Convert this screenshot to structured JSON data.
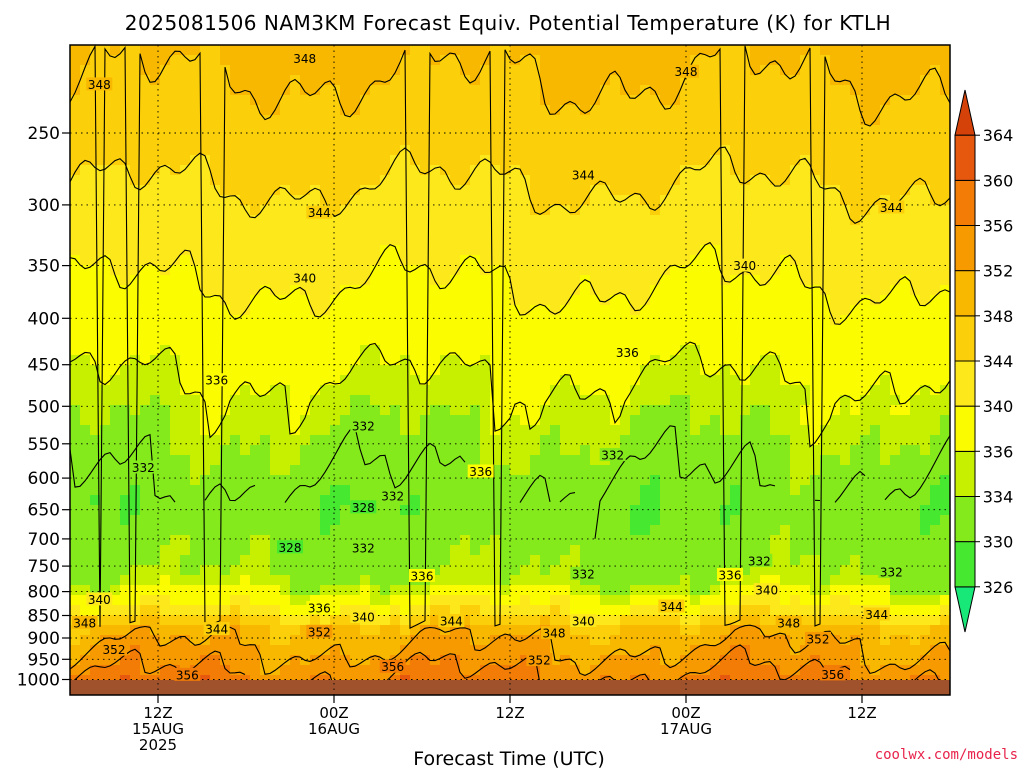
{
  "chart_data": {
    "type": "heatmap",
    "title": "2025081506 NAM3KM Forecast Equiv. Potential Temperature (K) for KTLH",
    "xlabel": "Forecast Time (UTC)",
    "ylabel": "",
    "y_axis": {
      "scale": "log-pressure",
      "tick_labels": [
        "250",
        "300",
        "350",
        "400",
        "450",
        "500",
        "550",
        "600",
        "650",
        "700",
        "750",
        "800",
        "850",
        "900",
        "950",
        "1000"
      ],
      "tick_values": [
        250,
        300,
        350,
        400,
        450,
        500,
        550,
        600,
        650,
        700,
        750,
        800,
        850,
        900,
        950,
        1000
      ],
      "range": [
        200,
        1040
      ]
    },
    "x_axis": {
      "ticks": [
        {
          "hour": 6,
          "lines": [
            "12Z",
            "15AUG",
            "2025"
          ]
        },
        {
          "hour": 18,
          "lines": [
            "00Z",
            "16AUG"
          ]
        },
        {
          "hour": 30,
          "lines": [
            "12Z"
          ]
        },
        {
          "hour": 42,
          "lines": [
            "00Z",
            "17AUG"
          ]
        },
        {
          "hour": 54,
          "lines": [
            "12Z"
          ]
        }
      ],
      "range": [
        0,
        60
      ]
    },
    "grid": true,
    "legend": "right",
    "colorbar": {
      "levels": [
        326,
        330,
        334,
        336,
        340,
        344,
        348,
        352,
        356,
        360,
        364
      ],
      "colors": [
        "#18e878",
        "#46e830",
        "#84ea1c",
        "#c6f000",
        "#fcfc00",
        "#fde81c",
        "#fbd00a",
        "#f8b800",
        "#f79a00",
        "#f27c05",
        "#e6580e",
        "#d4420a"
      ]
    },
    "contour_labels": [
      {
        "text": "348",
        "h": 16.0,
        "p": 207
      },
      {
        "text": "348",
        "h": 2.0,
        "p": 221
      },
      {
        "text": "348",
        "h": 42.0,
        "p": 214
      },
      {
        "text": "344",
        "h": 35.0,
        "p": 278
      },
      {
        "text": "344",
        "h": 17.0,
        "p": 306
      },
      {
        "text": "344",
        "h": 56.0,
        "p": 302
      },
      {
        "text": "340",
        "h": 16.0,
        "p": 361
      },
      {
        "text": "340",
        "h": 46.0,
        "p": 350
      },
      {
        "text": "336",
        "h": 10.0,
        "p": 468
      },
      {
        "text": "336",
        "h": 38.0,
        "p": 436
      },
      {
        "text": "332",
        "h": 20.0,
        "p": 526
      },
      {
        "text": "332",
        "h": 5.0,
        "p": 584
      },
      {
        "text": "332",
        "h": 37.0,
        "p": 566
      },
      {
        "text": "336",
        "h": 28.0,
        "p": 590
      },
      {
        "text": "328",
        "h": 20.0,
        "p": 646
      },
      {
        "text": "332",
        "h": 22.0,
        "p": 628
      },
      {
        "text": "328",
        "h": 15.0,
        "p": 715
      },
      {
        "text": "332",
        "h": 20.0,
        "p": 716
      },
      {
        "text": "336",
        "h": 24.0,
        "p": 769
      },
      {
        "text": "332",
        "h": 35.0,
        "p": 765
      },
      {
        "text": "332",
        "h": 47.0,
        "p": 740
      },
      {
        "text": "336",
        "h": 45.0,
        "p": 767
      },
      {
        "text": "332",
        "h": 56.0,
        "p": 761
      },
      {
        "text": "340",
        "h": 2.0,
        "p": 816
      },
      {
        "text": "336",
        "h": 17.0,
        "p": 834
      },
      {
        "text": "340",
        "h": 20.0,
        "p": 853
      },
      {
        "text": "340",
        "h": 47.5,
        "p": 797
      },
      {
        "text": "344",
        "h": 26.0,
        "p": 862
      },
      {
        "text": "340",
        "h": 35.0,
        "p": 862
      },
      {
        "text": "344",
        "h": 41.0,
        "p": 831
      },
      {
        "text": "348",
        "h": 1.0,
        "p": 866
      },
      {
        "text": "344",
        "h": 10.0,
        "p": 880
      },
      {
        "text": "352",
        "h": 17.0,
        "p": 886
      },
      {
        "text": "348",
        "h": 33.0,
        "p": 889
      },
      {
        "text": "348",
        "h": 49.0,
        "p": 866
      },
      {
        "text": "344",
        "h": 55.0,
        "p": 848
      },
      {
        "text": "352",
        "h": 51.0,
        "p": 902
      },
      {
        "text": "352",
        "h": 3.0,
        "p": 927
      },
      {
        "text": "356",
        "h": 22.0,
        "p": 968
      },
      {
        "text": "352",
        "h": 32.0,
        "p": 952
      },
      {
        "text": "356",
        "h": 8.0,
        "p": 988
      },
      {
        "text": "356",
        "h": 52.0,
        "p": 987
      }
    ]
  },
  "credit": "coolwx.com/models"
}
